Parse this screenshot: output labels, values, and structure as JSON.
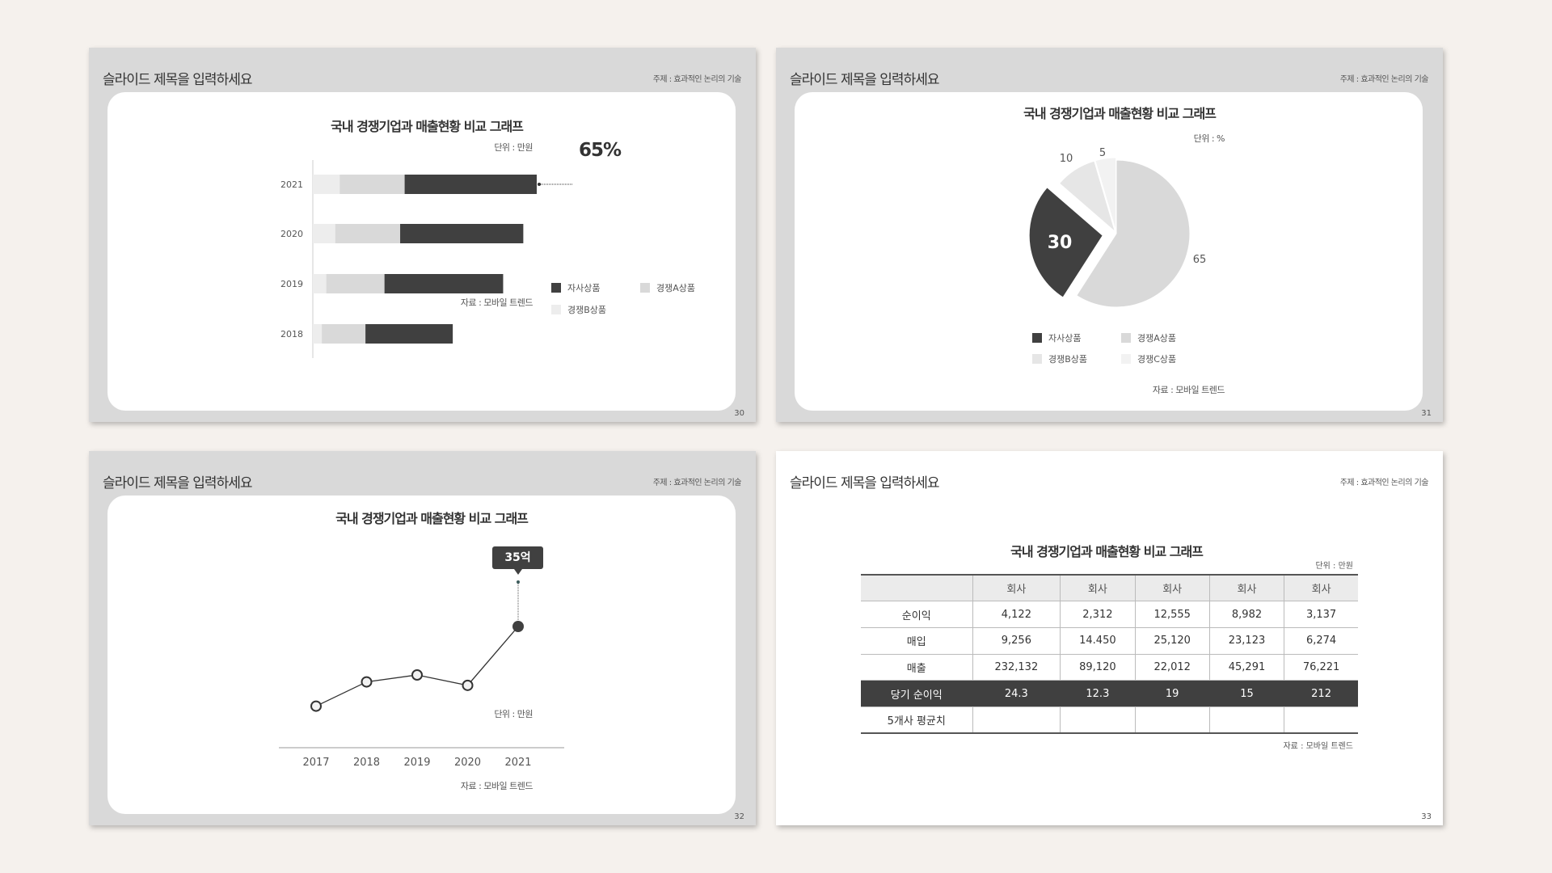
{
  "slides": [
    {
      "title": "슬라이드 제목을 입력하세요",
      "subject": "주제 : 효과적인 논리의 기술",
      "page": "30",
      "chart_title": "국내 경쟁기업과 매출현황 비교 그래프",
      "unit": "단위 : 만원",
      "source": "자료 : 모바일 트렌드",
      "callout": "65%"
    },
    {
      "title": "슬라이드 제목을 입력하세요",
      "subject": "주제 : 효과적인 논리의 기술",
      "page": "31",
      "chart_title": "국내 경쟁기업과 매출현황 비교 그래프",
      "unit": "단위 : %",
      "source": "자료 : 모바일 트렌드"
    },
    {
      "title": "슬라이드 제목을 입력하세요",
      "subject": "주제 : 효과적인 논리의 기술",
      "page": "32",
      "chart_title": "국내 경쟁기업과 매출현황 비교 그래프",
      "unit": "단위 : 만원",
      "source": "자료 : 모바일 트렌드",
      "callout": "35억"
    },
    {
      "title": "슬라이드 제목을 입력하세요",
      "subject": "주제 : 효과적인 논리의 기술",
      "page": "33",
      "chart_title": "국내 경쟁기업과 매출현황 비교 그래프",
      "unit": "단위 : 만원",
      "source": "자료 : 모바일 트렌드"
    }
  ],
  "colors": {
    "own": "#404040",
    "a": "#d9d9d9",
    "b": "#ededed",
    "c": "#f2f2f2"
  },
  "chart_data": [
    {
      "type": "bar",
      "orientation": "horizontal",
      "stacked": true,
      "categories": [
        "2021",
        "2020",
        "2019",
        "2018"
      ],
      "series": [
        {
          "name": "경쟁B상품",
          "values": [
            12,
            10,
            6,
            4
          ]
        },
        {
          "name": "경쟁A상품",
          "values": [
            29,
            29,
            26,
            19.5
          ]
        },
        {
          "name": "자사상품",
          "values": [
            59,
            55,
            53,
            39
          ]
        }
      ],
      "legend": [
        "자사상품",
        "경쟁A상품",
        "경쟁B상품"
      ],
      "legend_position": "right"
    },
    {
      "type": "pie",
      "categories": [
        "경쟁A상품",
        "자사상품",
        "경쟁B상품",
        "경쟁C상품"
      ],
      "values": [
        65,
        30,
        10,
        5
      ],
      "labels": [
        "65",
        "30",
        "10",
        "5"
      ],
      "exploded": "자사상품",
      "legend": [
        "자사상품",
        "경쟁A상품",
        "경쟁B상품",
        "경쟁C상품"
      ],
      "legend_position": "bottom"
    },
    {
      "type": "line",
      "x": [
        "2017",
        "2018",
        "2019",
        "2020",
        "2021"
      ],
      "values": [
        12,
        19,
        21,
        18,
        35
      ],
      "highlight": "2021"
    },
    {
      "type": "table",
      "columns": [
        "",
        "회사",
        "회사",
        "회사",
        "회사",
        "회사"
      ],
      "rows": [
        [
          "순이익",
          "4,122",
          "2,312",
          "12,555",
          "8,982",
          "3,137"
        ],
        [
          "매입",
          "9,256",
          "14.450",
          "25,120",
          "23,123",
          "6,274"
        ],
        [
          "매출",
          "232,132",
          "89,120",
          "22,012",
          "45,291",
          "76,221"
        ],
        [
          "당기 순이익",
          "24.3",
          "12.3",
          "19",
          "15",
          "212"
        ],
        [
          "5개사 평균치",
          "",
          "",
          "",
          "",
          ""
        ]
      ],
      "highlight_row": "당기 순이익"
    }
  ]
}
